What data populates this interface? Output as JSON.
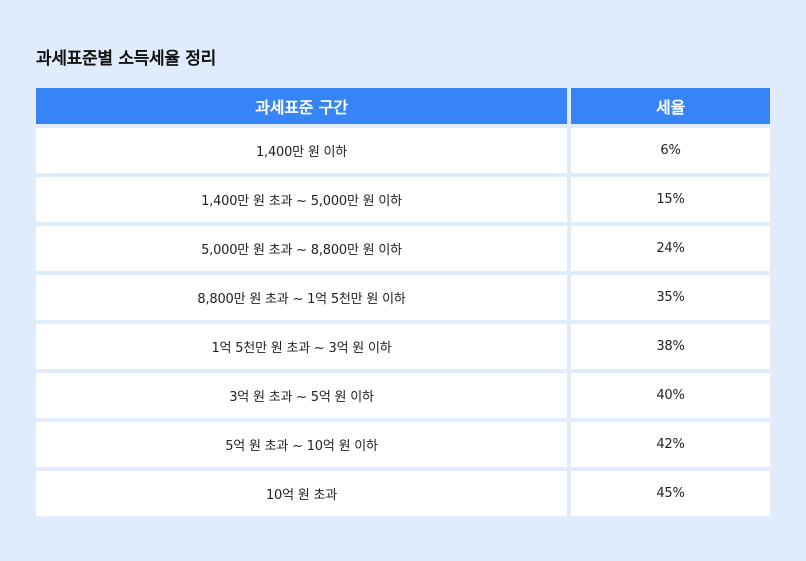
{
  "page": {
    "title": "과세표준별 소득세율 정리"
  },
  "table": {
    "headers": {
      "bracket": "과세표준 구간",
      "rate": "세율"
    },
    "rows": [
      {
        "bracket": "1,400만 원 이하",
        "rate": "6%"
      },
      {
        "bracket": "1,400만 원 초과 ~ 5,000만 원 이하",
        "rate": "15%"
      },
      {
        "bracket": "5,000만 원 초과 ~ 8,800만 원 이하",
        "rate": "24%"
      },
      {
        "bracket": "8,800만 원 초과 ~ 1억 5천만 원 이하",
        "rate": "35%"
      },
      {
        "bracket": "1억 5천만 원 초과 ~ 3억 원 이하",
        "rate": "38%"
      },
      {
        "bracket": "3억 원 초과 ~ 5억 원 이하",
        "rate": "40%"
      },
      {
        "bracket": "5억 원 초과 ~ 10억 원 이하",
        "rate": "42%"
      },
      {
        "bracket": "10억 원 초과",
        "rate": "45%"
      }
    ]
  },
  "colors": {
    "background": "#e0ecfc",
    "header": "#3784f7",
    "cell": "#ffffff",
    "text": "#222222"
  }
}
